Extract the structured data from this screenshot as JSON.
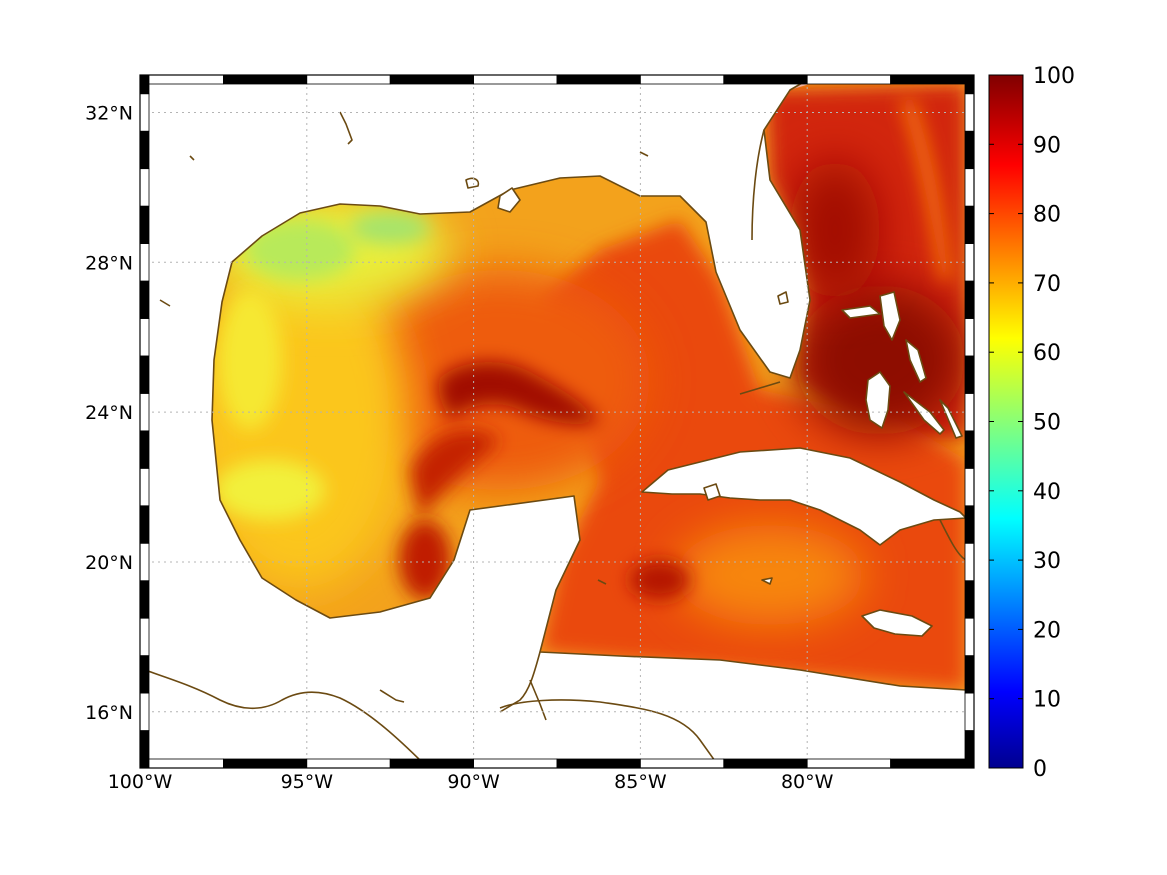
{
  "map": {
    "lon_range": [
      -100,
      -75
    ],
    "lat_range": [
      14.5,
      33
    ],
    "lon_ticks": [
      {
        "value": -100,
        "label": "100°W"
      },
      {
        "value": -95,
        "label": "95°W"
      },
      {
        "value": -90,
        "label": "90°W"
      },
      {
        "value": -85,
        "label": "85°W"
      },
      {
        "value": -80,
        "label": "80°W"
      }
    ],
    "lat_ticks": [
      {
        "value": 32,
        "label": "32°N"
      },
      {
        "value": 28,
        "label": "28°N"
      },
      {
        "value": 24,
        "label": "24°N"
      },
      {
        "value": 20,
        "label": "20°N"
      },
      {
        "value": 16,
        "label": "16°N"
      }
    ],
    "gridlines": true,
    "frame_style": "alternating black and white border",
    "coastline_color": "#6b4a12"
  },
  "colorbar": {
    "min": 0,
    "max": 100,
    "colormap": "jet",
    "tick_labels": [
      "0",
      "10",
      "20",
      "30",
      "40",
      "50",
      "60",
      "70",
      "80",
      "90",
      "100"
    ]
  },
  "field_features": [
    {
      "name": "northwest Gulf shelf low",
      "lon": -93,
      "lat": 28.5,
      "value": 55
    },
    {
      "name": "western Gulf moderate band",
      "lon": -97,
      "lat": 24,
      "value": 65
    },
    {
      "name": "central Gulf eddy core",
      "lon": -89.5,
      "lat": 25.3,
      "value": 92
    },
    {
      "name": "eastern Gulf",
      "lon": -85.5,
      "lat": 26.5,
      "value": 85
    },
    {
      "name": "Bahamas / Atlantic maximum",
      "lon": -77,
      "lat": 26,
      "value": 96
    },
    {
      "name": "Caribbean south of Cuba",
      "lon": -81,
      "lat": 19.5,
      "value": 80
    }
  ]
}
